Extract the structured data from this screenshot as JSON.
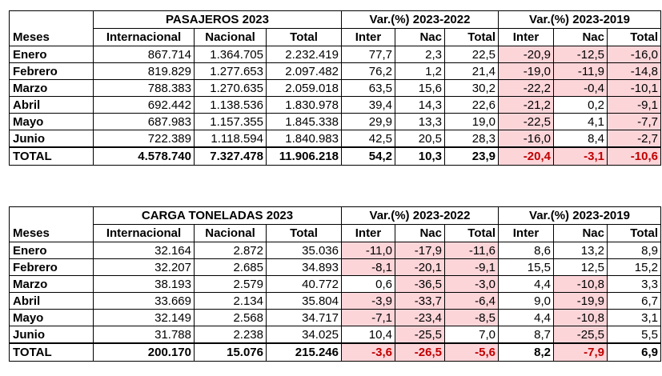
{
  "pasajeros": {
    "group_headers": [
      "PASAJEROS 2023",
      "Var.(%) 2023-2022",
      "Var.(%) 2023-2019"
    ],
    "columns": [
      "Meses",
      "Internacional",
      "Nacional",
      "Total",
      "Inter",
      "Nac",
      "Total",
      "Inter",
      "Nac",
      "Total"
    ],
    "rows": [
      [
        "Enero",
        "867.714",
        "1.364.705",
        "2.232.419",
        "77,7",
        "2,3",
        "22,5",
        "-20,9",
        "-12,5",
        "-16,0"
      ],
      [
        "Febrero",
        "819.829",
        "1.277.653",
        "2.097.482",
        "76,2",
        "1,2",
        "21,4",
        "-19,0",
        "-11,9",
        "-14,8"
      ],
      [
        "Marzo",
        "788.383",
        "1.270.635",
        "2.059.018",
        "63,5",
        "15,6",
        "30,2",
        "-22,2",
        "-0,4",
        "-10,1"
      ],
      [
        "Abril",
        "692.442",
        "1.138.536",
        "1.830.978",
        "39,4",
        "14,3",
        "22,6",
        "-21,2",
        "0,2",
        "-9,1"
      ],
      [
        "Mayo",
        "687.983",
        "1.157.355",
        "1.845.338",
        "29,9",
        "13,3",
        "19,0",
        "-22,5",
        "4,1",
        "-7,7"
      ],
      [
        "Junio",
        "722.389",
        "1.118.594",
        "1.840.983",
        "42,5",
        "20,5",
        "28,3",
        "-16,0",
        "8,4",
        "-2,7"
      ]
    ],
    "total": [
      "TOTAL",
      "4.578.740",
      "7.327.478",
      "11.906.218",
      "54,2",
      "10,3",
      "23,9",
      "-20,4",
      "-3,1",
      "-10,6"
    ]
  },
  "carga": {
    "group_headers": [
      "CARGA TONELADAS 2023",
      "Var.(%) 2023-2022",
      "Var.(%) 2023-2019"
    ],
    "columns": [
      "Meses",
      "Internacional",
      "Nacional",
      "Total",
      "Inter",
      "Nac",
      "Total",
      "Inter",
      "Nac",
      "Total"
    ],
    "rows": [
      [
        "Enero",
        "32.164",
        "2.872",
        "35.036",
        "-11,0",
        "-17,9",
        "-11,6",
        "8,6",
        "13,2",
        "8,9"
      ],
      [
        "Febrero",
        "32.207",
        "2.685",
        "34.893",
        "-8,1",
        "-20,1",
        "-9,1",
        "15,5",
        "12,5",
        "15,2"
      ],
      [
        "Marzo",
        "38.193",
        "2.579",
        "40.772",
        "0,6",
        "-36,5",
        "-3,0",
        "4,4",
        "-10,8",
        "3,3"
      ],
      [
        "Abril",
        "33.669",
        "2.134",
        "35.804",
        "-3,9",
        "-33,7",
        "-6,4",
        "9,0",
        "-19,9",
        "6,7"
      ],
      [
        "Mayo",
        "32.149",
        "2.568",
        "34.717",
        "-7,1",
        "-23,4",
        "-8,5",
        "4,4",
        "-10,8",
        "3,1"
      ],
      [
        "Junio",
        "31.788",
        "2.238",
        "34.025",
        "10,4",
        "-25,5",
        "7,0",
        "8,7",
        "-25,5",
        "5,5"
      ]
    ],
    "total": [
      "TOTAL",
      "200.170",
      "15.076",
      "215.246",
      "-3,6",
      "-26,5",
      "-5,6",
      "8,2",
      "-7,9",
      "6,9"
    ]
  },
  "colors": {
    "negative_fill": "#fcd5d9",
    "negative_total_text": "#c00000"
  }
}
